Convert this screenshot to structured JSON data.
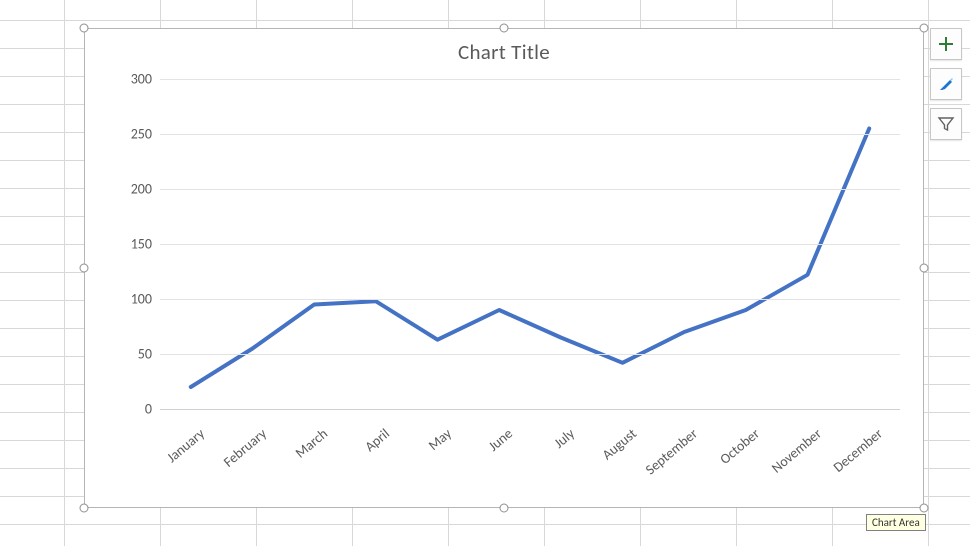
{
  "chart": {
    "title": "Chart Title",
    "title_fontsize": 21,
    "title_color": "#5a5a5a",
    "type": "line",
    "background_color": "#ffffff",
    "border_color": "#b5b5b5",
    "grid_color": "#e3e3e3",
    "axis_line_color": "#d0d0d0",
    "tick_label_color": "#5a5a5a",
    "tick_label_fontsize": 14,
    "x_label_rotation_deg": -40,
    "categories": [
      "January",
      "February",
      "March",
      "April",
      "May",
      "June",
      "July",
      "August",
      "September",
      "October",
      "November",
      "December"
    ],
    "values": [
      20,
      55,
      95,
      98,
      63,
      90,
      65,
      42,
      70,
      90,
      122,
      255
    ],
    "line_color": "#4472c4",
    "line_width": 4,
    "ylim": [
      0,
      300
    ],
    "ytick_step": 50,
    "y_ticks": [
      0,
      50,
      100,
      150,
      200,
      250,
      300
    ]
  },
  "tools": {
    "plus_label": "Chart Elements",
    "brush_label": "Chart Styles",
    "filter_label": "Chart Filters",
    "plus_color": "#2e7d32",
    "brush_color": "#1976d2",
    "filter_color": "#616161"
  },
  "tooltip": {
    "text": "Chart Area"
  },
  "sheet": {
    "gridline_color": "#d8d8d8"
  }
}
